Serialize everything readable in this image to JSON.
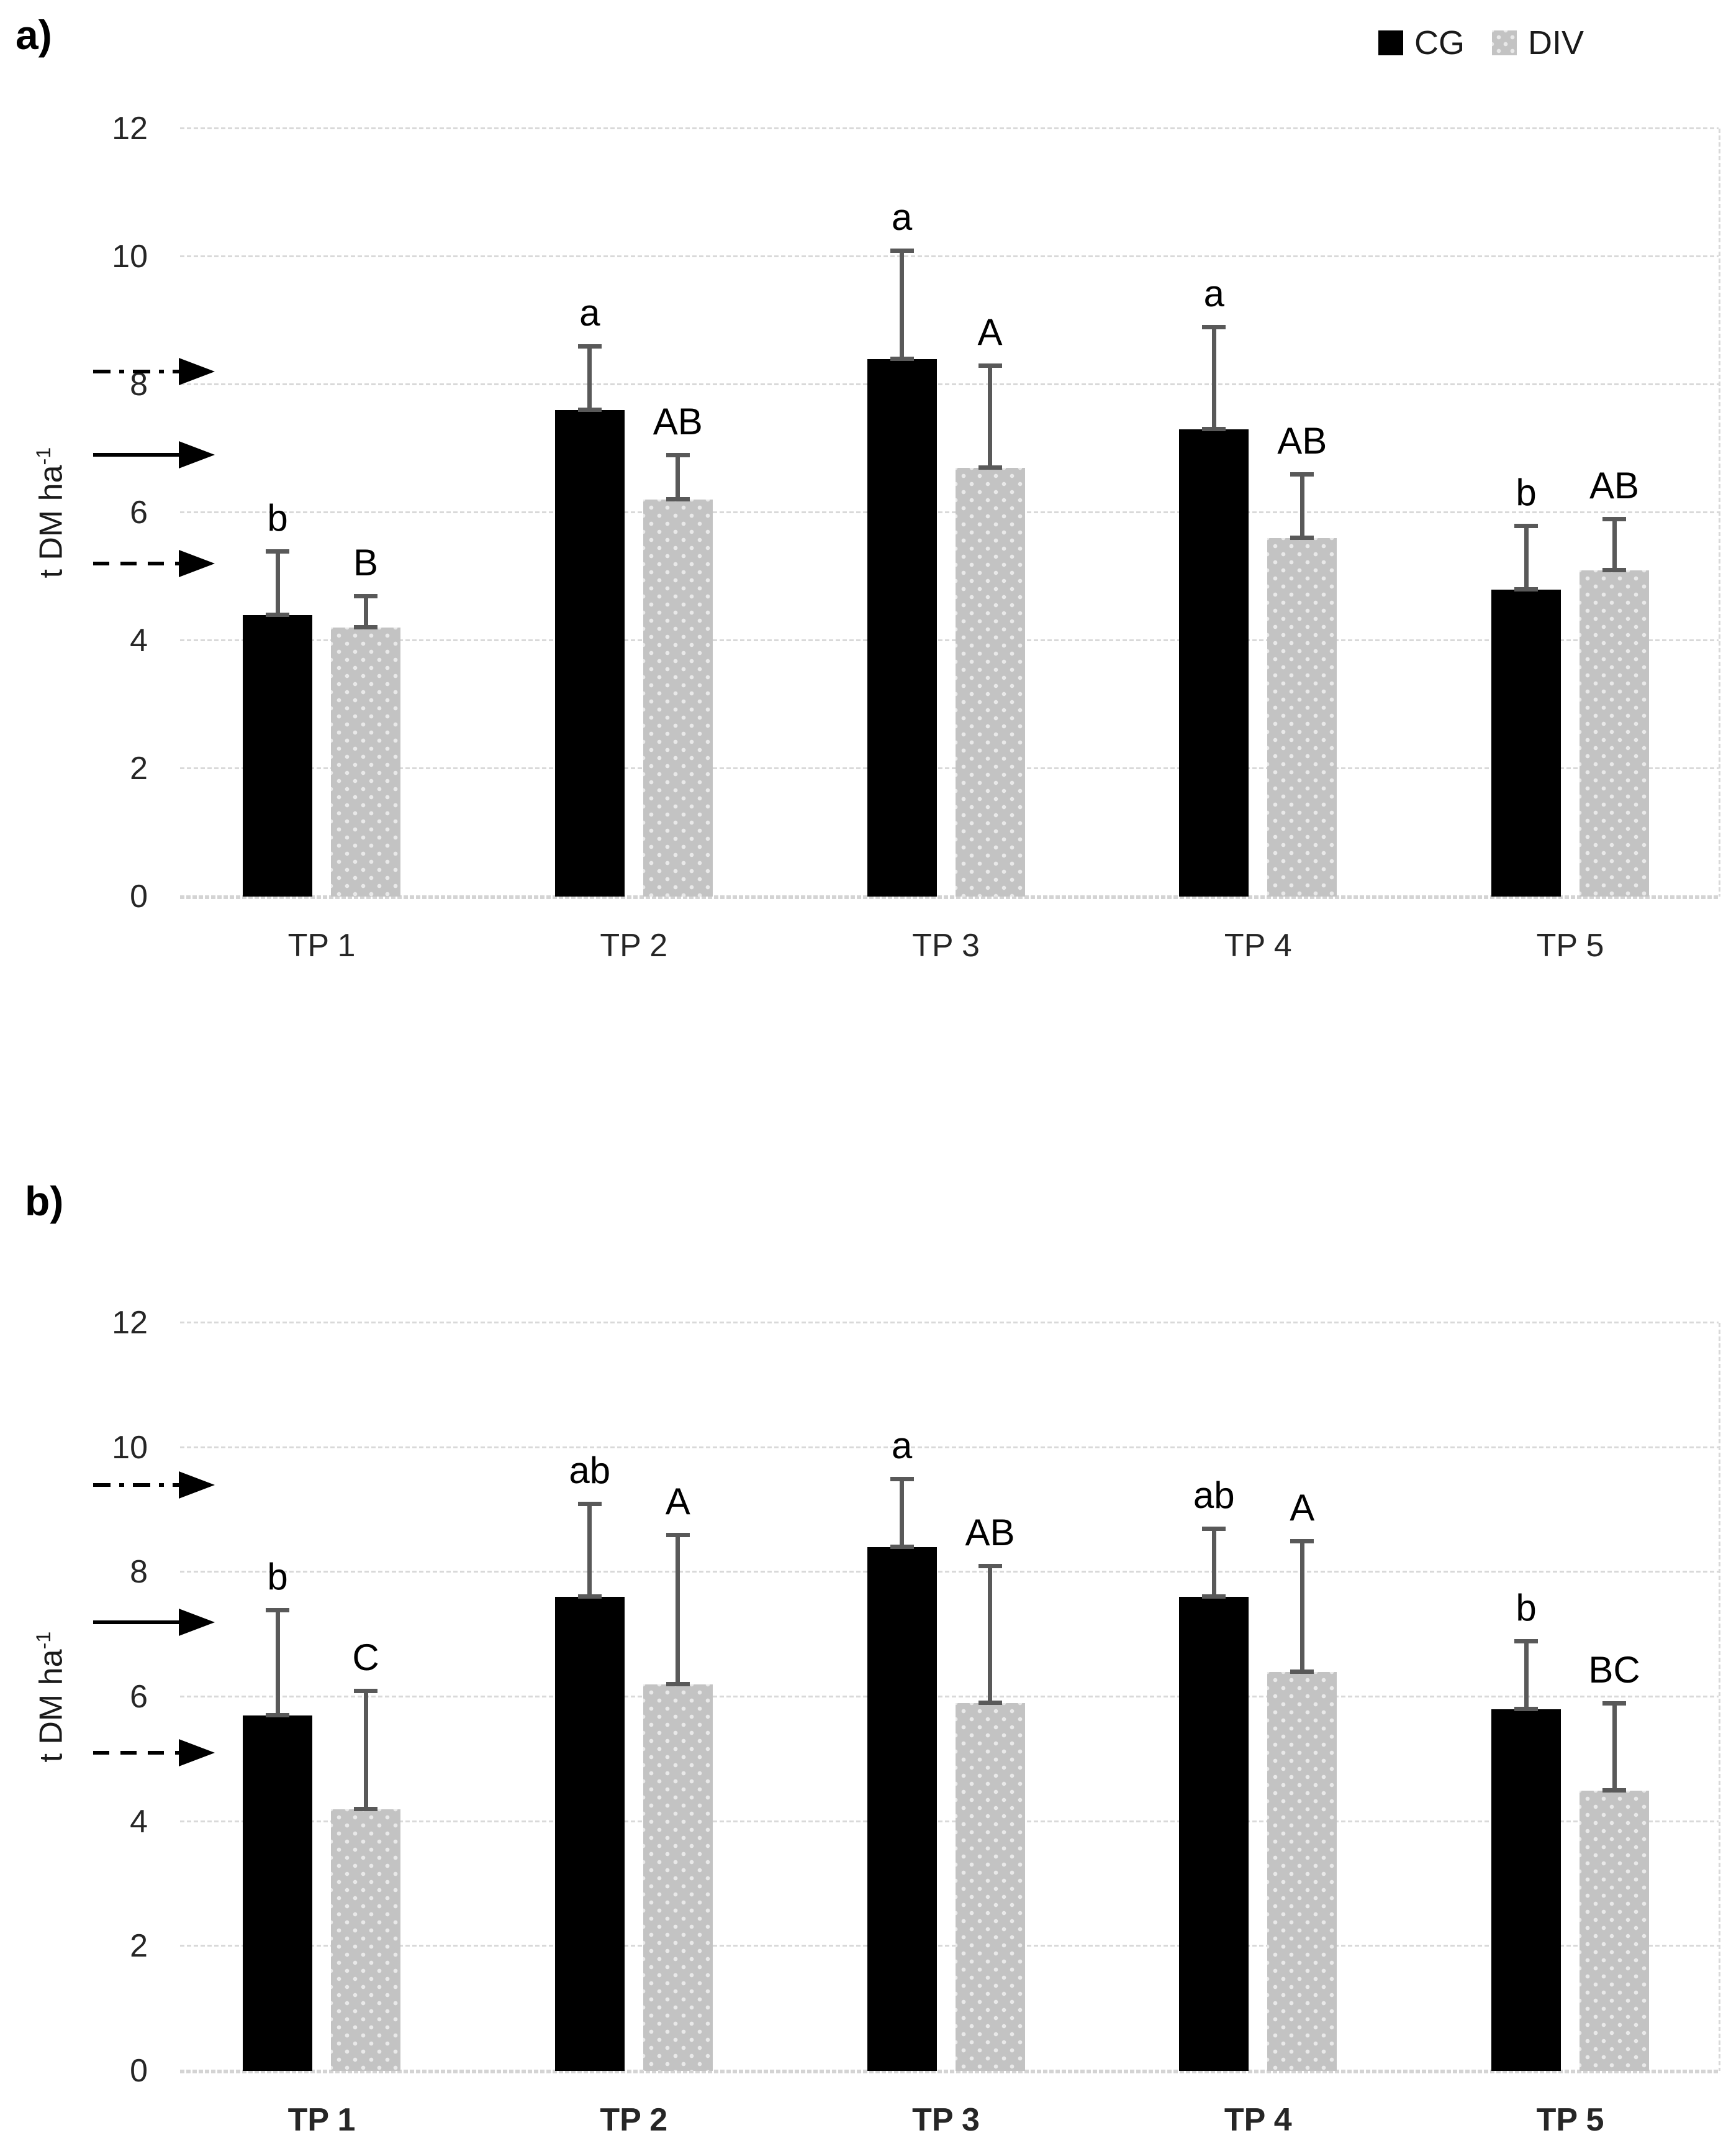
{
  "legend": {
    "items": [
      {
        "label": "CG",
        "swatch": "black-square"
      },
      {
        "label": "DIV",
        "swatch": "dotted-gray-square"
      }
    ]
  },
  "colors": {
    "cg_bar": "#000000",
    "div_bar": "#c3c3c3",
    "div_bar_dots": "#e9e9e9",
    "error_bar": "#595959",
    "gridline": "#d9d9d9",
    "axis_text": "#262626",
    "arrow": "#000000",
    "background": "#ffffff"
  },
  "chart_data": [
    {
      "type": "bar",
      "panel_label": "a)",
      "title": "",
      "xlabel": "",
      "ylabel_base": "t DM ha",
      "ylabel_exponent": "-1",
      "ylim": [
        0,
        12
      ],
      "yticks": [
        0,
        2,
        4,
        6,
        8,
        10,
        12
      ],
      "ytick_labels": [
        "0",
        "2",
        "4",
        "6",
        "8",
        "10",
        "12"
      ],
      "grid": true,
      "legend_position": "top-right",
      "xlabel_bold": false,
      "categories": [
        "TP 1",
        "TP 2",
        "TP 3",
        "TP 4",
        "TP 5"
      ],
      "series": [
        {
          "name": "CG",
          "values": [
            4.4,
            7.6,
            8.4,
            7.3,
            4.8
          ],
          "error_tops": [
            5.4,
            8.6,
            10.1,
            8.9,
            5.8
          ],
          "letters": [
            "b",
            "a",
            "a",
            "a",
            "b"
          ]
        },
        {
          "name": "DIV",
          "values": [
            4.2,
            6.2,
            6.7,
            5.6,
            5.1
          ],
          "error_tops": [
            4.7,
            6.9,
            8.3,
            6.6,
            5.9
          ],
          "letters": [
            "B",
            "AB",
            "A",
            "AB",
            "AB"
          ]
        }
      ],
      "arrows": [
        {
          "style": "dash-dot",
          "value": 8.2
        },
        {
          "style": "solid",
          "value": 6.9
        },
        {
          "style": "dashed",
          "value": 5.2
        }
      ]
    },
    {
      "type": "bar",
      "panel_label": "b)",
      "title": "",
      "xlabel": "",
      "ylabel_base": "t DM ha",
      "ylabel_exponent": "-1",
      "ylim": [
        0,
        12
      ],
      "yticks": [
        0,
        2,
        4,
        6,
        8,
        10,
        12
      ],
      "ytick_labels": [
        "0",
        "2",
        "4",
        "6",
        "8",
        "10",
        "12"
      ],
      "grid": true,
      "legend_position": "none",
      "xlabel_bold": true,
      "categories": [
        "TP 1",
        "TP 2",
        "TP 3",
        "TP 4",
        "TP 5"
      ],
      "series": [
        {
          "name": "CG",
          "values": [
            5.7,
            7.6,
            8.4,
            7.6,
            5.8
          ],
          "error_tops": [
            7.4,
            9.1,
            9.5,
            8.7,
            6.9
          ],
          "letters": [
            "b",
            "ab",
            "a",
            "ab",
            "b"
          ]
        },
        {
          "name": "DIV",
          "values": [
            4.2,
            6.2,
            5.9,
            6.4,
            4.5
          ],
          "error_tops": [
            6.1,
            8.6,
            8.1,
            8.5,
            5.9
          ],
          "letters": [
            "C",
            "A",
            "AB",
            "A",
            "BC"
          ]
        }
      ],
      "arrows": [
        {
          "style": "dash-dot",
          "value": 9.4
        },
        {
          "style": "solid",
          "value": 7.2
        },
        {
          "style": "dashed",
          "value": 5.1
        }
      ]
    }
  ]
}
